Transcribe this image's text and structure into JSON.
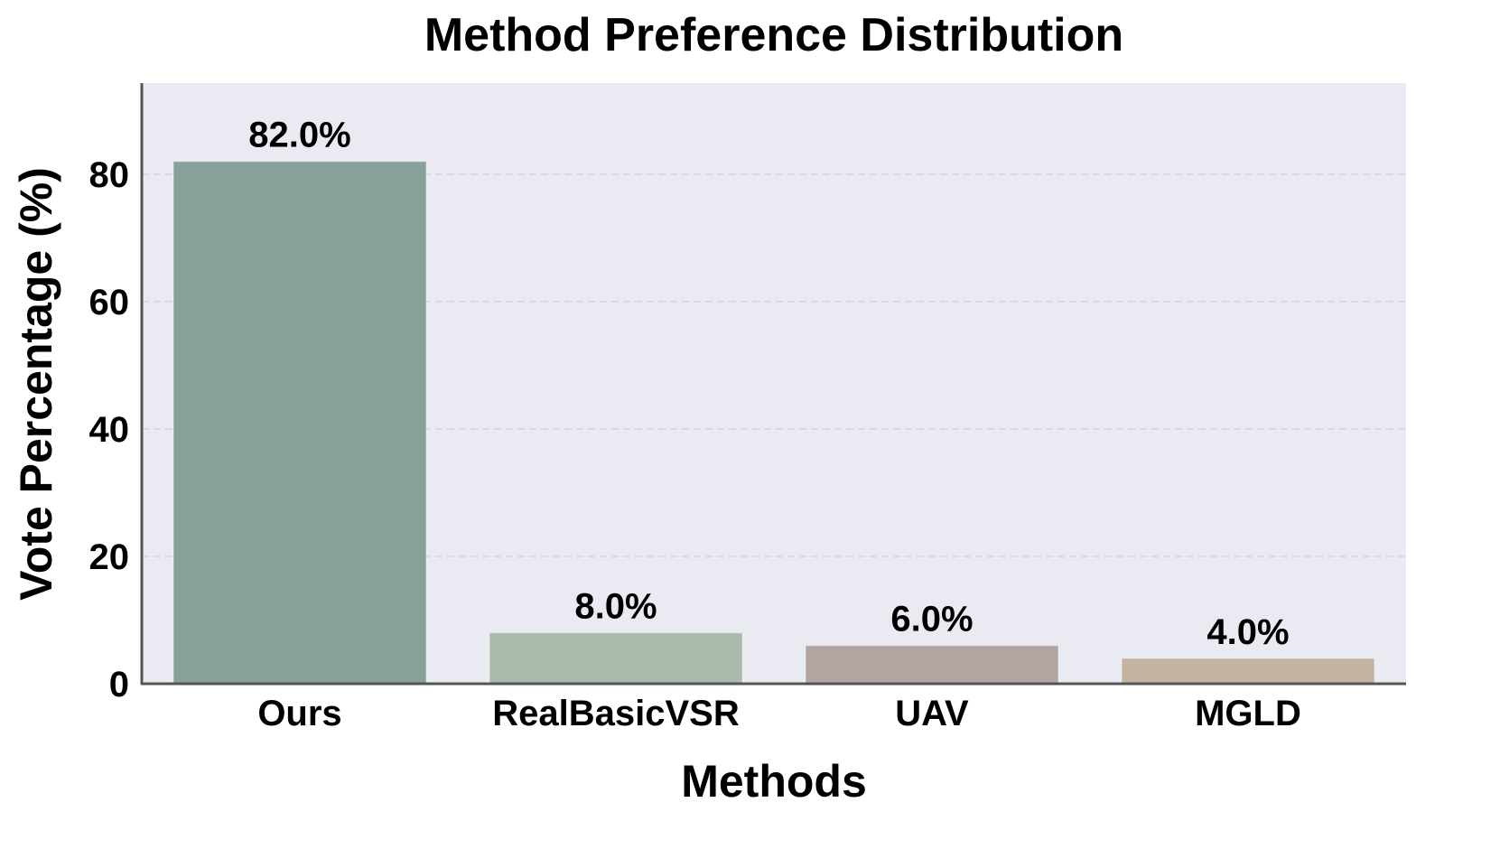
{
  "chart_data": {
    "type": "bar",
    "title": "Method Preference Distribution",
    "xlabel": "Methods",
    "ylabel": "Vote Percentage (%)",
    "categories": [
      "Ours",
      "RealBasicVSR",
      "UAV",
      "MGLD"
    ],
    "values": [
      82.0,
      8.0,
      6.0,
      4.0
    ],
    "data_labels": [
      "82.0%",
      "8.0%",
      "6.0%",
      "4.0%"
    ],
    "colors": [
      "#87a09a",
      "#a9b9ac",
      "#b3a5a2",
      "#c2b4a1"
    ],
    "ylim": [
      0,
      94.3
    ],
    "yticks": [
      0,
      20,
      40,
      60,
      80
    ],
    "ytick_labels": [
      "0",
      "20",
      "40",
      "60",
      "80"
    ],
    "grid": "horizontal dashed",
    "background": "#eaeaf2"
  }
}
